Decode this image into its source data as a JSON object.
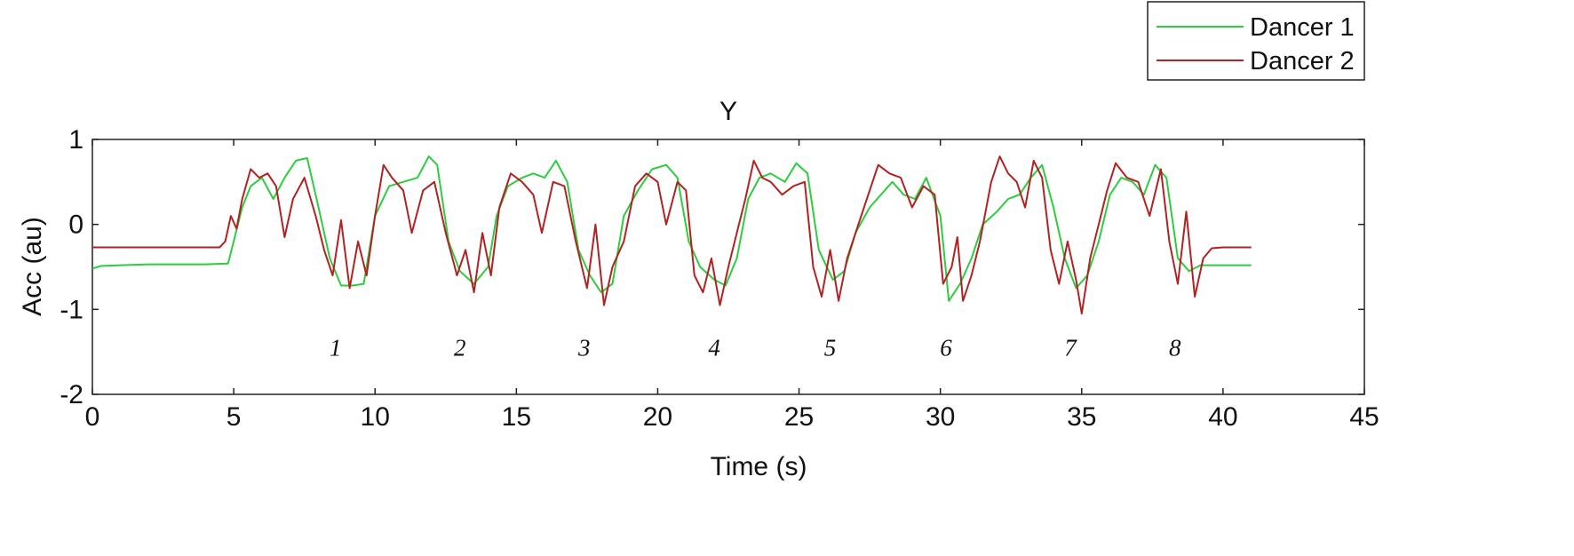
{
  "chart_data": {
    "type": "line",
    "title": "Y",
    "xlabel": "Time (s)",
    "ylabel": "Acc (au)",
    "xlim": [
      0,
      45
    ],
    "ylim": [
      -2,
      1
    ],
    "xticks": [
      0,
      5,
      10,
      15,
      20,
      25,
      30,
      35,
      40,
      45
    ],
    "yticks": [
      -2,
      -1,
      0,
      1
    ],
    "grid": false,
    "legend_position": "top-right outside",
    "series": [
      {
        "name": "Dancer 1",
        "color": "#2ecc40",
        "points": [
          [
            0,
            -0.52
          ],
          [
            0.3,
            -0.49
          ],
          [
            1,
            -0.48
          ],
          [
            2,
            -0.47
          ],
          [
            3,
            -0.47
          ],
          [
            4,
            -0.47
          ],
          [
            4.8,
            -0.46
          ],
          [
            5.0,
            -0.2
          ],
          [
            5.3,
            0.2
          ],
          [
            5.6,
            0.45
          ],
          [
            6.0,
            0.55
          ],
          [
            6.4,
            0.3
          ],
          [
            6.8,
            0.55
          ],
          [
            7.2,
            0.75
          ],
          [
            7.6,
            0.78
          ],
          [
            8.0,
            0.2
          ],
          [
            8.4,
            -0.4
          ],
          [
            8.8,
            -0.72
          ],
          [
            9.2,
            -0.72
          ],
          [
            9.6,
            -0.7
          ],
          [
            10.0,
            0.1
          ],
          [
            10.5,
            0.45
          ],
          [
            11.0,
            0.5
          ],
          [
            11.5,
            0.55
          ],
          [
            11.9,
            0.8
          ],
          [
            12.2,
            0.7
          ],
          [
            12.6,
            -0.2
          ],
          [
            13.0,
            -0.55
          ],
          [
            13.5,
            -0.7
          ],
          [
            14.0,
            -0.5
          ],
          [
            14.3,
            0.1
          ],
          [
            14.7,
            0.45
          ],
          [
            15.2,
            0.55
          ],
          [
            15.6,
            0.6
          ],
          [
            16.0,
            0.55
          ],
          [
            16.4,
            0.75
          ],
          [
            16.8,
            0.5
          ],
          [
            17.2,
            -0.3
          ],
          [
            17.6,
            -0.6
          ],
          [
            18.0,
            -0.8
          ],
          [
            18.4,
            -0.7
          ],
          [
            18.8,
            0.1
          ],
          [
            19.3,
            0.4
          ],
          [
            19.8,
            0.65
          ],
          [
            20.3,
            0.7
          ],
          [
            20.7,
            0.55
          ],
          [
            21.1,
            -0.2
          ],
          [
            21.5,
            -0.5
          ],
          [
            22.0,
            -0.65
          ],
          [
            22.4,
            -0.72
          ],
          [
            22.8,
            -0.4
          ],
          [
            23.2,
            0.3
          ],
          [
            23.6,
            0.55
          ],
          [
            24.0,
            0.6
          ],
          [
            24.5,
            0.5
          ],
          [
            24.9,
            0.72
          ],
          [
            25.3,
            0.6
          ],
          [
            25.7,
            -0.3
          ],
          [
            26.2,
            -0.65
          ],
          [
            26.6,
            -0.55
          ],
          [
            27.0,
            -0.1
          ],
          [
            27.5,
            0.2
          ],
          [
            27.9,
            0.35
          ],
          [
            28.3,
            0.5
          ],
          [
            28.7,
            0.35
          ],
          [
            29.1,
            0.3
          ],
          [
            29.5,
            0.55
          ],
          [
            30.0,
            0.1
          ],
          [
            30.3,
            -0.9
          ],
          [
            30.7,
            -0.7
          ],
          [
            31.1,
            -0.4
          ],
          [
            31.5,
            0.0
          ],
          [
            32.0,
            0.15
          ],
          [
            32.4,
            0.3
          ],
          [
            32.8,
            0.35
          ],
          [
            33.2,
            0.55
          ],
          [
            33.6,
            0.7
          ],
          [
            34.0,
            0.2
          ],
          [
            34.4,
            -0.4
          ],
          [
            34.8,
            -0.75
          ],
          [
            35.2,
            -0.6
          ],
          [
            35.6,
            -0.2
          ],
          [
            36.0,
            0.35
          ],
          [
            36.4,
            0.55
          ],
          [
            36.8,
            0.5
          ],
          [
            37.2,
            0.35
          ],
          [
            37.6,
            0.7
          ],
          [
            38.0,
            0.55
          ],
          [
            38.4,
            -0.4
          ],
          [
            38.8,
            -0.55
          ],
          [
            39.2,
            -0.48
          ],
          [
            40,
            -0.48
          ],
          [
            41,
            -0.48
          ]
        ]
      },
      {
        "name": "Dancer 2",
        "color": "#b22222",
        "points": [
          [
            0,
            -0.27
          ],
          [
            1,
            -0.27
          ],
          [
            2,
            -0.27
          ],
          [
            3,
            -0.27
          ],
          [
            4,
            -0.27
          ],
          [
            4.5,
            -0.27
          ],
          [
            4.7,
            -0.2
          ],
          [
            4.9,
            0.1
          ],
          [
            5.1,
            -0.05
          ],
          [
            5.3,
            0.3
          ],
          [
            5.6,
            0.65
          ],
          [
            5.9,
            0.55
          ],
          [
            6.2,
            0.6
          ],
          [
            6.5,
            0.45
          ],
          [
            6.8,
            -0.15
          ],
          [
            7.1,
            0.3
          ],
          [
            7.5,
            0.55
          ],
          [
            7.9,
            0.1
          ],
          [
            8.2,
            -0.3
          ],
          [
            8.5,
            -0.6
          ],
          [
            8.8,
            0.05
          ],
          [
            9.1,
            -0.75
          ],
          [
            9.4,
            -0.2
          ],
          [
            9.7,
            -0.6
          ],
          [
            10.0,
            0.1
          ],
          [
            10.3,
            0.7
          ],
          [
            10.6,
            0.55
          ],
          [
            11.0,
            0.4
          ],
          [
            11.3,
            -0.1
          ],
          [
            11.7,
            0.4
          ],
          [
            12.1,
            0.5
          ],
          [
            12.5,
            -0.1
          ],
          [
            12.9,
            -0.6
          ],
          [
            13.2,
            -0.3
          ],
          [
            13.5,
            -0.8
          ],
          [
            13.8,
            -0.1
          ],
          [
            14.1,
            -0.6
          ],
          [
            14.4,
            0.2
          ],
          [
            14.8,
            0.6
          ],
          [
            15.2,
            0.5
          ],
          [
            15.6,
            0.35
          ],
          [
            15.9,
            -0.1
          ],
          [
            16.3,
            0.5
          ],
          [
            16.7,
            0.45
          ],
          [
            17.1,
            -0.2
          ],
          [
            17.5,
            -0.75
          ],
          [
            17.8,
            0.0
          ],
          [
            18.1,
            -0.95
          ],
          [
            18.4,
            -0.5
          ],
          [
            18.8,
            -0.2
          ],
          [
            19.2,
            0.45
          ],
          [
            19.6,
            0.6
          ],
          [
            20.0,
            0.5
          ],
          [
            20.3,
            0.0
          ],
          [
            20.7,
            0.5
          ],
          [
            21.0,
            0.4
          ],
          [
            21.3,
            -0.6
          ],
          [
            21.6,
            -0.8
          ],
          [
            21.9,
            -0.4
          ],
          [
            22.2,
            -0.95
          ],
          [
            22.5,
            -0.5
          ],
          [
            22.8,
            -0.1
          ],
          [
            23.1,
            0.3
          ],
          [
            23.4,
            0.75
          ],
          [
            23.7,
            0.55
          ],
          [
            24.0,
            0.5
          ],
          [
            24.4,
            0.35
          ],
          [
            24.8,
            0.45
          ],
          [
            25.2,
            0.5
          ],
          [
            25.5,
            -0.5
          ],
          [
            25.8,
            -0.85
          ],
          [
            26.1,
            -0.3
          ],
          [
            26.4,
            -0.9
          ],
          [
            26.7,
            -0.4
          ],
          [
            27.0,
            -0.1
          ],
          [
            27.4,
            0.3
          ],
          [
            27.8,
            0.7
          ],
          [
            28.2,
            0.6
          ],
          [
            28.6,
            0.55
          ],
          [
            29.0,
            0.2
          ],
          [
            29.4,
            0.45
          ],
          [
            29.8,
            0.35
          ],
          [
            30.1,
            -0.7
          ],
          [
            30.4,
            -0.5
          ],
          [
            30.6,
            -0.15
          ],
          [
            30.8,
            -0.9
          ],
          [
            31.1,
            -0.6
          ],
          [
            31.4,
            -0.2
          ],
          [
            31.8,
            0.5
          ],
          [
            32.1,
            0.8
          ],
          [
            32.4,
            0.6
          ],
          [
            32.7,
            0.5
          ],
          [
            33.0,
            0.2
          ],
          [
            33.3,
            0.75
          ],
          [
            33.6,
            0.55
          ],
          [
            33.9,
            -0.3
          ],
          [
            34.2,
            -0.7
          ],
          [
            34.5,
            -0.2
          ],
          [
            34.8,
            -0.65
          ],
          [
            35.0,
            -1.05
          ],
          [
            35.3,
            -0.4
          ],
          [
            35.6,
            0.0
          ],
          [
            35.9,
            0.4
          ],
          [
            36.2,
            0.72
          ],
          [
            36.6,
            0.55
          ],
          [
            37.0,
            0.5
          ],
          [
            37.4,
            0.1
          ],
          [
            37.8,
            0.65
          ],
          [
            38.1,
            -0.2
          ],
          [
            38.4,
            -0.7
          ],
          [
            38.7,
            0.15
          ],
          [
            39.0,
            -0.85
          ],
          [
            39.3,
            -0.4
          ],
          [
            39.6,
            -0.28
          ],
          [
            40,
            -0.27
          ],
          [
            41,
            -0.27
          ]
        ]
      }
    ],
    "annotations": [
      {
        "text": "1",
        "x": 8.6,
        "y": -1.45
      },
      {
        "text": "2",
        "x": 13.0,
        "y": -1.45
      },
      {
        "text": "3",
        "x": 17.4,
        "y": -1.45
      },
      {
        "text": "4",
        "x": 22.0,
        "y": -1.45
      },
      {
        "text": "5",
        "x": 26.1,
        "y": -1.45
      },
      {
        "text": "6",
        "x": 30.2,
        "y": -1.45
      },
      {
        "text": "7",
        "x": 34.6,
        "y": -1.45
      },
      {
        "text": "8",
        "x": 38.3,
        "y": -1.45
      }
    ]
  }
}
